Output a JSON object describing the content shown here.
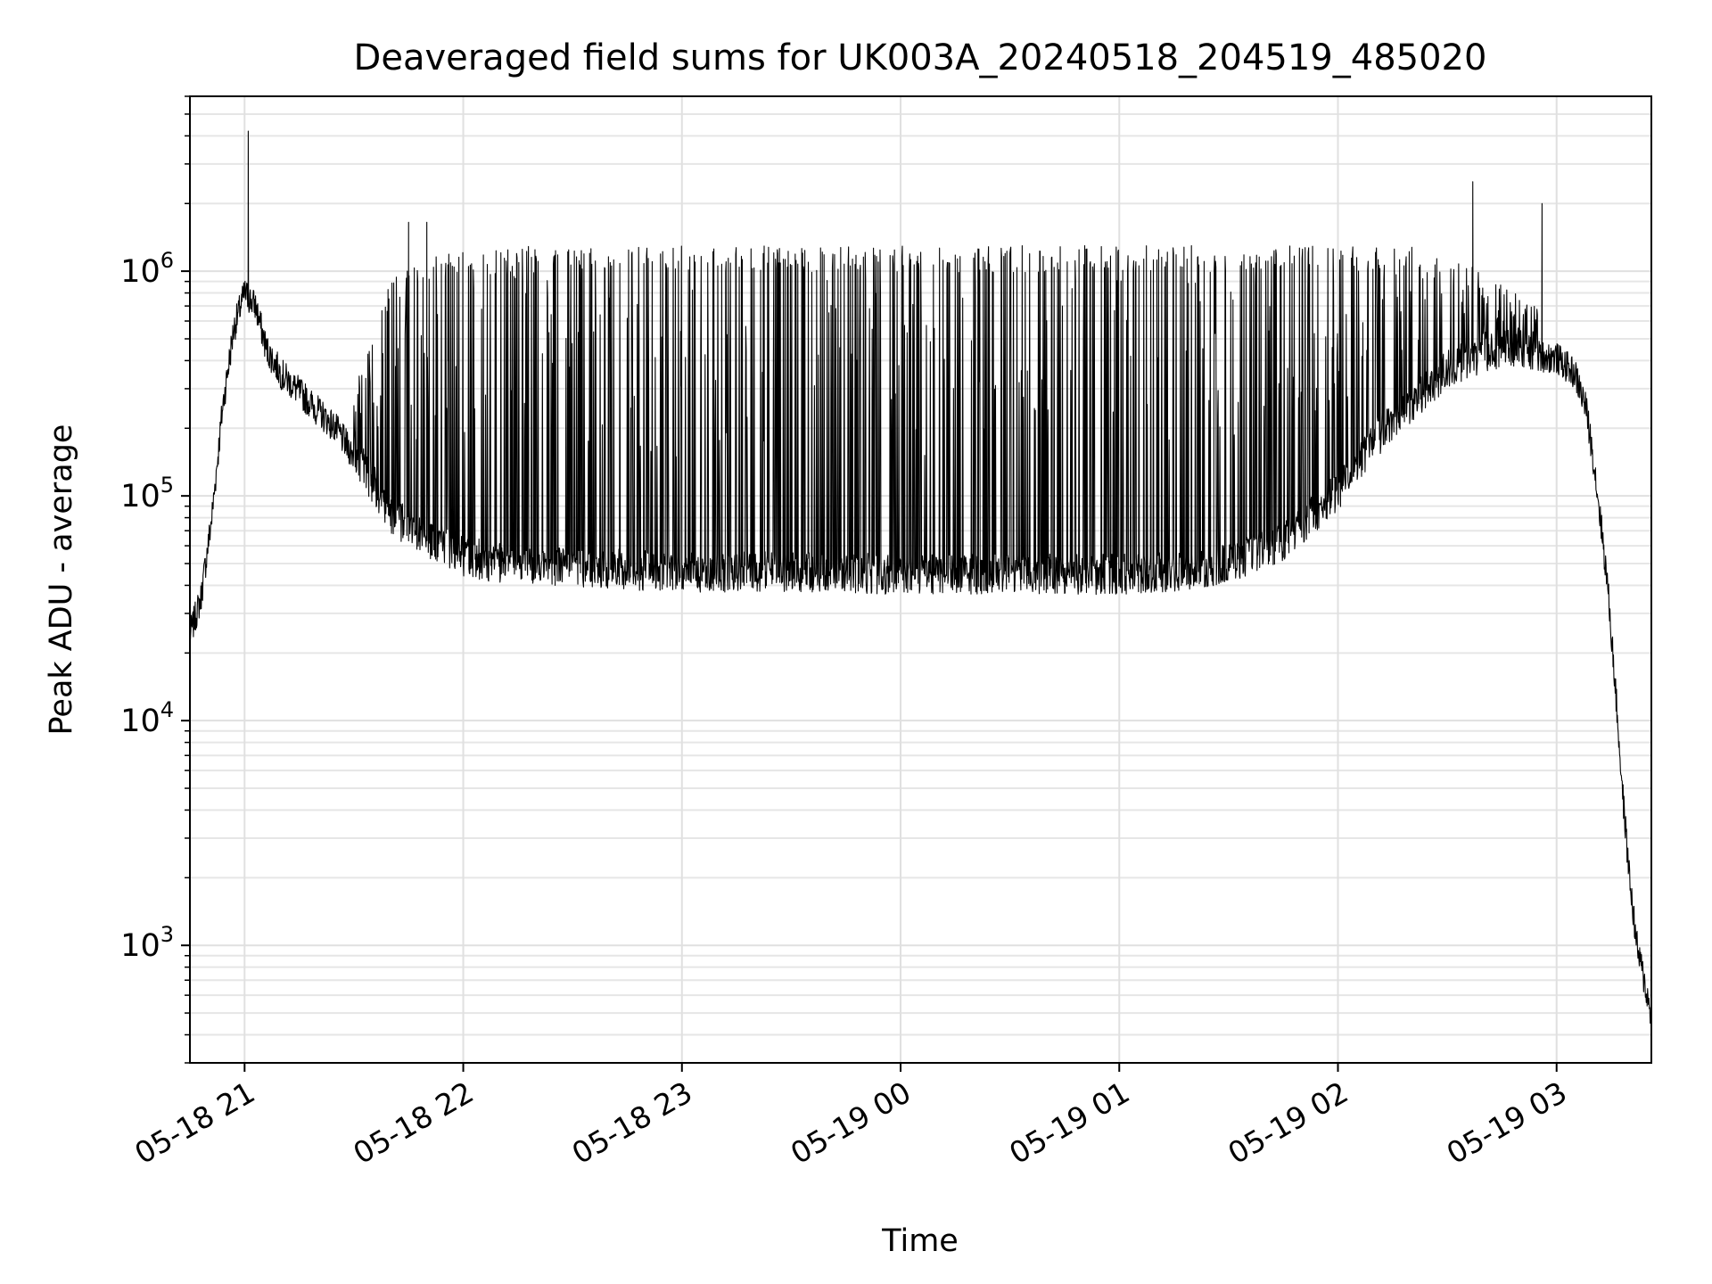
{
  "chart_data": {
    "type": "line",
    "title": "Deaveraged field sums for UK003A_20240518_204519_485020",
    "xlabel": "Time",
    "ylabel": "Peak ADU - average",
    "yscale": "log",
    "grid": "major and minor",
    "legend": "none",
    "xlim": [
      "2024-05-18 20:45",
      "2024-05-19 03:26"
    ],
    "ylim": [
      300,
      6000000
    ],
    "x_ticks": [
      {
        "label": "05-18 21",
        "value": "2024-05-18 21:00"
      },
      {
        "label": "05-18 22",
        "value": "2024-05-18 22:00"
      },
      {
        "label": "05-18 23",
        "value": "2024-05-18 23:00"
      },
      {
        "label": "05-19 00",
        "value": "2024-05-19 00:00"
      },
      {
        "label": "05-19 01",
        "value": "2024-05-19 01:00"
      },
      {
        "label": "05-19 02",
        "value": "2024-05-19 02:00"
      },
      {
        "label": "05-19 03",
        "value": "2024-05-19 03:00"
      }
    ],
    "y_ticks": [
      {
        "base": "10",
        "exp": "3",
        "value": 1000
      },
      {
        "base": "10",
        "exp": "4",
        "value": 10000
      },
      {
        "base": "10",
        "exp": "5",
        "value": 100000
      },
      {
        "base": "10",
        "exp": "6",
        "value": 1000000
      }
    ],
    "line_color": "#000000",
    "series": [
      {
        "name": "",
        "baseline": [
          [
            "2024-05-18 20:45",
            24000
          ],
          [
            "2024-05-18 20:48",
            35000
          ],
          [
            "2024-05-18 20:51",
            80000
          ],
          [
            "2024-05-18 20:54",
            250000
          ],
          [
            "2024-05-18 20:57",
            550000
          ],
          [
            "2024-05-18 21:00",
            800000
          ],
          [
            "2024-05-18 21:03",
            700000
          ],
          [
            "2024-05-18 21:06",
            450000
          ],
          [
            "2024-05-18 21:10",
            350000
          ],
          [
            "2024-05-18 21:15",
            290000
          ],
          [
            "2024-05-18 21:20",
            240000
          ],
          [
            "2024-05-18 21:25",
            200000
          ],
          [
            "2024-05-18 21:30",
            150000
          ],
          [
            "2024-05-18 21:35",
            110000
          ],
          [
            "2024-05-18 21:40",
            80000
          ],
          [
            "2024-05-18 21:45",
            70000
          ],
          [
            "2024-05-18 21:50",
            62000
          ],
          [
            "2024-05-18 21:55",
            58000
          ],
          [
            "2024-05-18 22:00",
            52000
          ],
          [
            "2024-05-18 22:10",
            48000
          ],
          [
            "2024-05-18 22:20",
            48000
          ],
          [
            "2024-05-18 22:30",
            46000
          ],
          [
            "2024-05-18 22:45",
            45000
          ],
          [
            "2024-05-18 23:00",
            44000
          ],
          [
            "2024-05-18 23:30",
            44000
          ],
          [
            "2024-05-19 00:00",
            43000
          ],
          [
            "2024-05-19 00:30",
            43000
          ],
          [
            "2024-05-19 01:00",
            43000
          ],
          [
            "2024-05-19 01:15",
            44000
          ],
          [
            "2024-05-19 01:30",
            48000
          ],
          [
            "2024-05-19 01:45",
            60000
          ],
          [
            "2024-05-19 02:00",
            100000
          ],
          [
            "2024-05-19 02:10",
            170000
          ],
          [
            "2024-05-19 02:20",
            250000
          ],
          [
            "2024-05-19 02:30",
            350000
          ],
          [
            "2024-05-19 02:40",
            420000
          ],
          [
            "2024-05-19 02:50",
            430000
          ],
          [
            "2024-05-19 03:00",
            410000
          ],
          [
            "2024-05-19 03:05",
            350000
          ],
          [
            "2024-05-19 03:08",
            250000
          ],
          [
            "2024-05-19 03:10",
            150000
          ],
          [
            "2024-05-19 03:12",
            80000
          ],
          [
            "2024-05-19 03:14",
            40000
          ],
          [
            "2024-05-19 03:16",
            15000
          ],
          [
            "2024-05-19 03:18",
            5000
          ],
          [
            "2024-05-19 03:20",
            2000
          ],
          [
            "2024-05-19 03:22",
            1000
          ],
          [
            "2024-05-19 03:24",
            700
          ],
          [
            "2024-05-19 03:26",
            480
          ]
        ],
        "upper_envelope": [
          [
            "2024-05-18 21:30",
            300000
          ],
          [
            "2024-05-18 21:40",
            900000
          ],
          [
            "2024-05-18 21:50",
            1200000
          ],
          [
            "2024-05-18 22:20",
            1300000
          ],
          [
            "2024-05-19 02:20",
            1300000
          ],
          [
            "2024-05-19 02:40",
            1000000
          ],
          [
            "2024-05-19 02:55",
            700000
          ]
        ],
        "spikes": [
          [
            "2024-05-18 21:01",
            4200000
          ],
          [
            "2024-05-18 21:45",
            1650000
          ],
          [
            "2024-05-18 21:50",
            1650000
          ],
          [
            "2024-05-19 02:37",
            2500000
          ],
          [
            "2024-05-19 02:56",
            2000000
          ],
          [
            "2024-05-19 03:10",
            130000
          ]
        ]
      }
    ]
  }
}
